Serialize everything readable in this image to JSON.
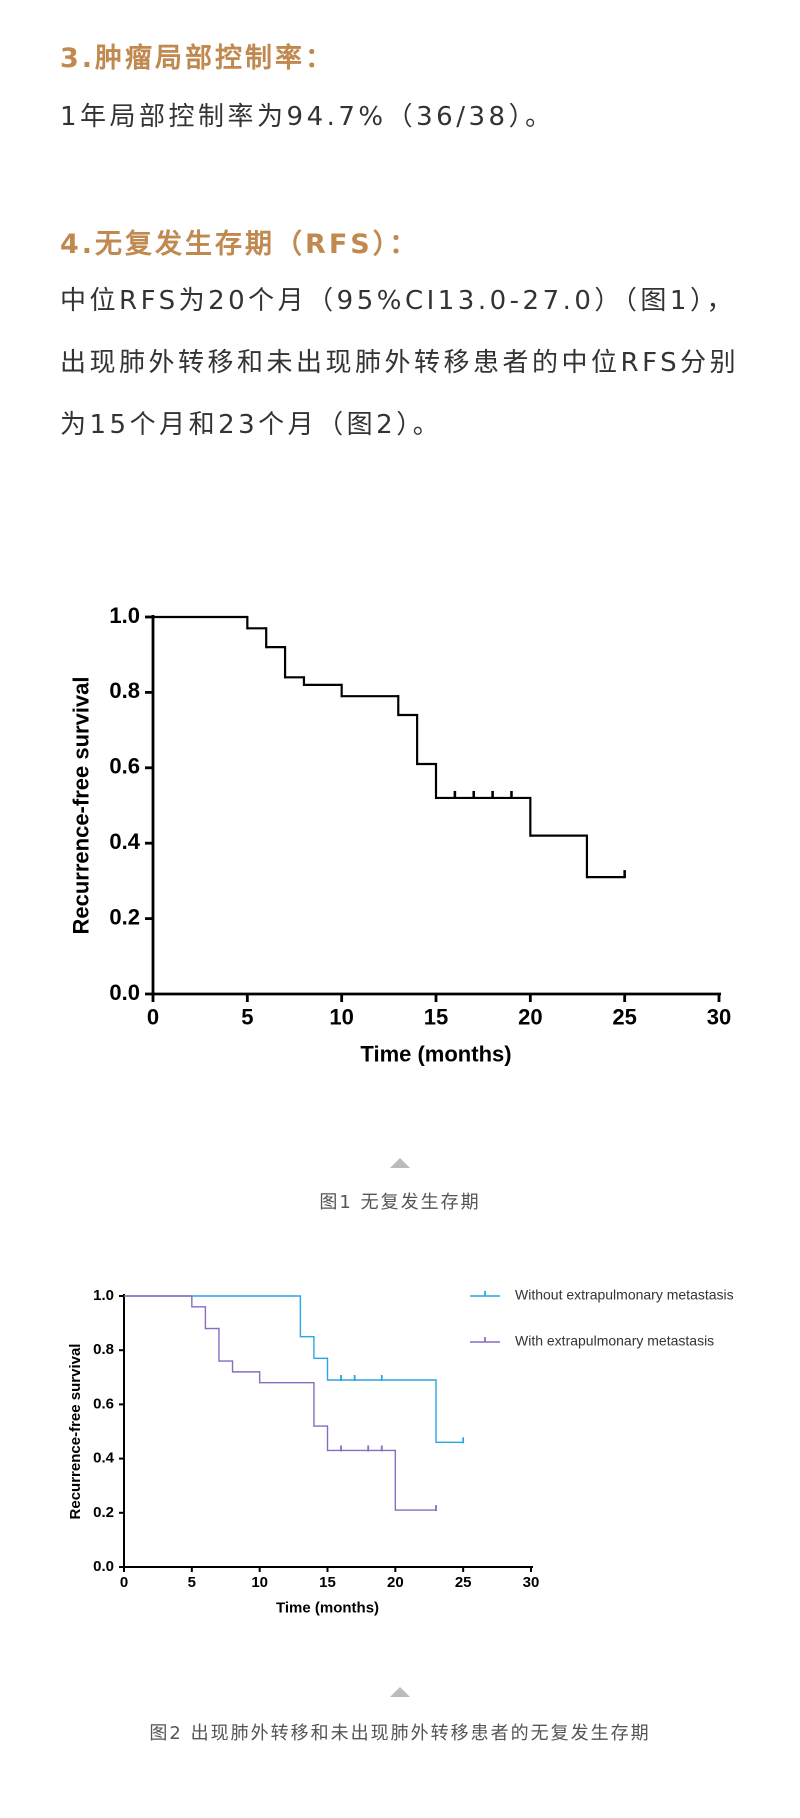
{
  "sections": [
    {
      "heading": "3.肿瘤局部控制率：",
      "text": "1年局部控制率为94.7%（36/38）。"
    },
    {
      "heading": "4.无复发生存期（RFS）：",
      "text": "中位RFS为20个月（95%CI13.0-27.0）（图1），出现肺外转移和未出现肺外转移患者的中位RFS分别为15个月和23个月（图2）。"
    }
  ],
  "captions": [
    "图1 无复发生存期",
    "图2 出现肺外转移和未出现肺外转移患者的无复发生存期"
  ],
  "chart_data": [
    {
      "type": "line",
      "step": "post",
      "x_label": "Time (months)",
      "y_label": "Recurrence-free survival",
      "xlim": [
        0,
        30
      ],
      "xticks": [
        0,
        5,
        10,
        15,
        20,
        25,
        30
      ],
      "ylim": [
        0,
        1
      ],
      "yticks": [
        {
          "value": 0,
          "label": "0.0"
        },
        0.2,
        0.4,
        0.6,
        0.8,
        {
          "value": 1,
          "label": "1.0"
        }
      ],
      "series": [
        {
          "color": "#000000",
          "x": [
            0,
            5,
            6,
            7,
            8,
            10,
            13,
            14,
            15,
            20,
            23
          ],
          "values": [
            1.0,
            0.97,
            0.92,
            0.84,
            0.82,
            0.79,
            0.74,
            0.61,
            0.52,
            0.42,
            0.31
          ],
          "censored_x": [
            16,
            17,
            18,
            19,
            25
          ],
          "censored_values": [
            0.52,
            0.52,
            0.52,
            0.52,
            0.31
          ]
        }
      ]
    },
    {
      "type": "line",
      "step": "post",
      "x_label": "Time (months)",
      "y_label": "Recurrence-free survival",
      "legend": "top-right",
      "xlim": [
        0,
        30
      ],
      "xticks": [
        0,
        5,
        10,
        15,
        20,
        25,
        30
      ],
      "ylim": [
        0,
        1
      ],
      "yticks": [
        {
          "value": 0,
          "label": "0.0"
        },
        0.2,
        0.4,
        0.6,
        0.8,
        {
          "value": 1,
          "label": "1.0"
        }
      ],
      "series": [
        {
          "name": "Without extrapulmonary metastasis",
          "color": "#2aa6e0",
          "x": [
            0,
            13,
            14,
            15,
            23
          ],
          "values": [
            1.0,
            0.85,
            0.77,
            0.69,
            0.46
          ],
          "censored_x": [
            16,
            17,
            19,
            25
          ],
          "censored_values": [
            0.69,
            0.69,
            0.69,
            0.46
          ]
        },
        {
          "name": "With extrapulmonary metastasis",
          "color": "#8a6cbf",
          "x": [
            0,
            5,
            6,
            7,
            8,
            10,
            14,
            15,
            20
          ],
          "values": [
            1.0,
            0.96,
            0.88,
            0.76,
            0.72,
            0.68,
            0.52,
            0.43,
            0.21
          ],
          "censored_x": [
            16,
            18,
            19,
            23
          ],
          "censored_values": [
            0.43,
            0.43,
            0.43,
            0.21
          ]
        }
      ]
    }
  ]
}
